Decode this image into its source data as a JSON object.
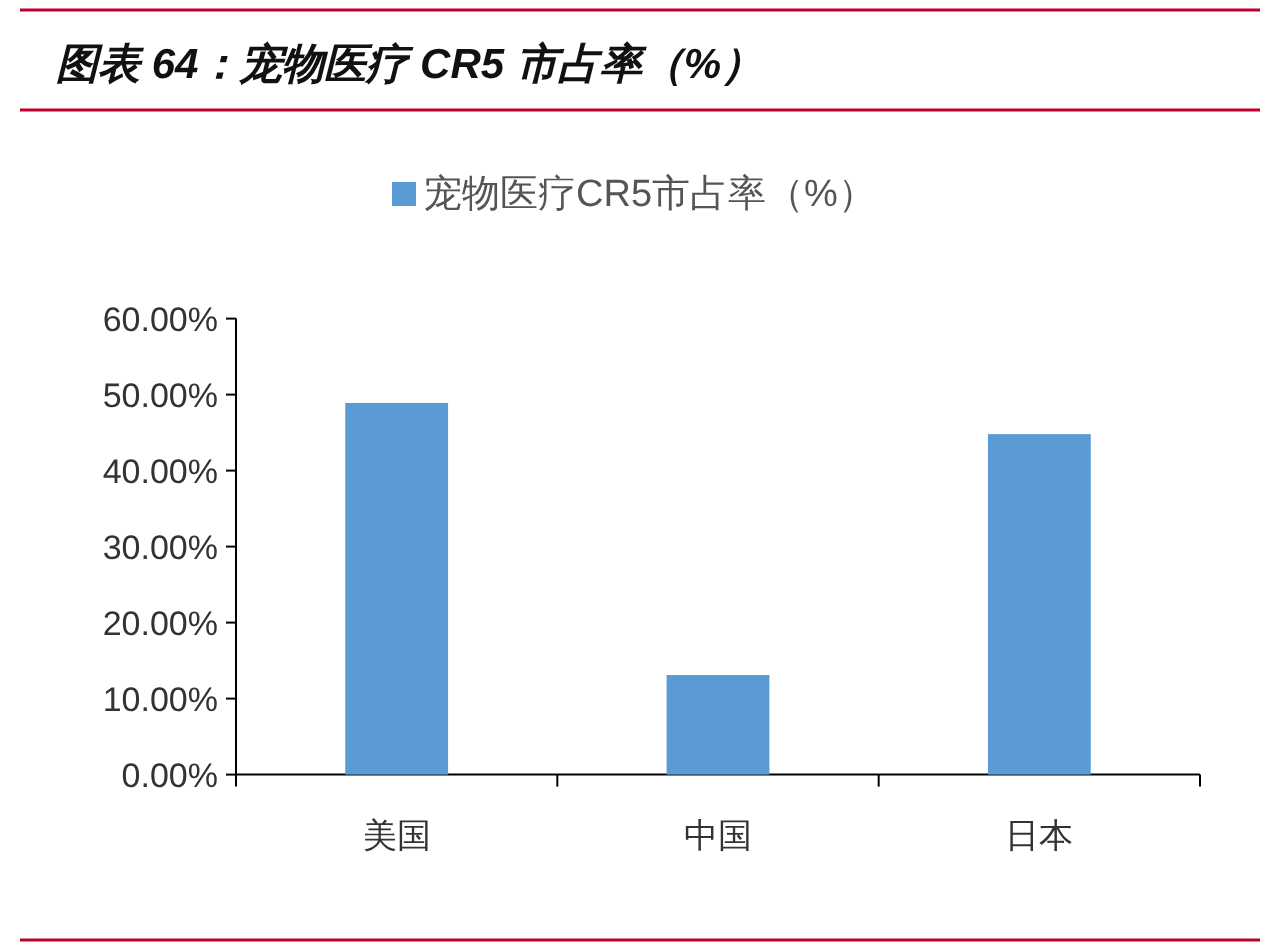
{
  "chart_data": {
    "type": "bar",
    "title": "图表 64：宠物医疗 CR5 市占率（%）",
    "categories": [
      "美国",
      "中国",
      "日本"
    ],
    "series": [
      {
        "name": "宠物医疗CR5市占率（%）",
        "color": "#5b9bd5",
        "values": [
          48.9,
          13.1,
          44.8
        ]
      }
    ],
    "ylim": [
      0,
      60
    ],
    "yticks": [
      {
        "value": 0,
        "label": "0.00%"
      },
      {
        "value": 10,
        "label": "10.00%"
      },
      {
        "value": 20,
        "label": "20.00%"
      },
      {
        "value": 30,
        "label": "30.00%"
      },
      {
        "value": 40,
        "label": "40.00%"
      },
      {
        "value": 50,
        "label": "50.00%"
      },
      {
        "value": 60,
        "label": "60.00%"
      }
    ],
    "grid": false,
    "legend": "top"
  }
}
